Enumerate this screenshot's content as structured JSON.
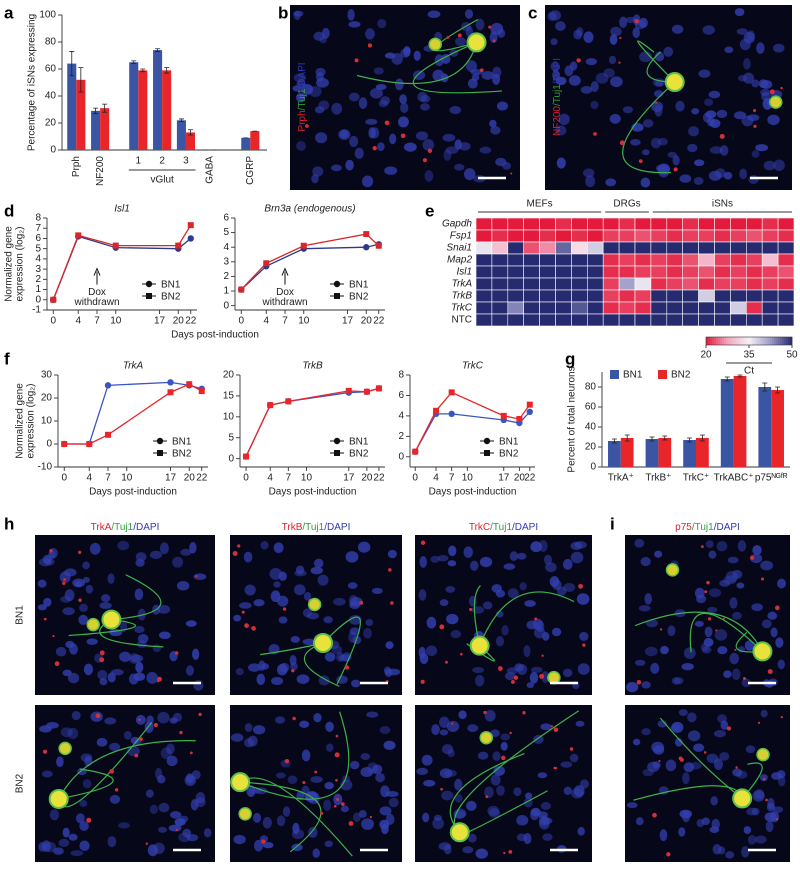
{
  "panel_labels": [
    "a",
    "b",
    "c",
    "d",
    "e",
    "f",
    "g",
    "h",
    "i"
  ],
  "stains": {
    "b": [
      "Prph",
      "/Tuj1",
      "/DAPI"
    ],
    "c": [
      "NF200",
      "/Tuj1",
      "/DAPI"
    ],
    "h1": [
      "TrkA",
      "/Tuj1",
      "/DAPI"
    ],
    "h2": [
      "TrkB",
      "/Tuj1",
      "/DAPI"
    ],
    "h3": [
      "TrkC",
      "/Tuj1",
      "/DAPI"
    ],
    "i": [
      "p75",
      "/Tuj1",
      "/DAPI"
    ]
  },
  "row_labels": [
    "BN1",
    "BN2"
  ],
  "chart_data": [
    {
      "type": "bar",
      "ylabel": "Percentage of iSNs expressing",
      "categories": [
        "Prph",
        "NF200",
        "1",
        "2",
        "3",
        "GABA",
        "CGRP"
      ],
      "group_label": "vGlut",
      "series": [
        {
          "color": "#3a55a4",
          "values": [
            64,
            29,
            65,
            74,
            22,
            0,
            9
          ],
          "errors": [
            9,
            2,
            1,
            1,
            1,
            0,
            0
          ]
        },
        {
          "color": "#e8262a",
          "values": [
            52,
            31,
            59,
            59,
            13,
            0,
            14
          ],
          "errors": [
            9,
            3,
            1,
            2,
            2,
            0,
            0
          ]
        }
      ],
      "ylim": [
        0,
        100
      ],
      "yticks": [
        0,
        20,
        40,
        60,
        80,
        100
      ]
    },
    {
      "type": "line",
      "title": "Isl1",
      "ylabel": [
        "Normalized gene",
        "expression (log₂)"
      ],
      "xlabel": "Days post-induction",
      "x": [
        0,
        4,
        10,
        20,
        22
      ],
      "xlim": [
        -1,
        23
      ],
      "xticks": [
        0,
        4,
        7,
        10,
        17,
        20,
        22
      ],
      "ylim": [
        -1,
        8
      ],
      "yticks": [
        -1,
        0,
        1,
        2,
        3,
        4,
        5,
        6,
        7,
        8
      ],
      "annotation": {
        "text": [
          "Dox",
          "withdrawn"
        ],
        "x": 7
      },
      "legend": "lower right",
      "series": [
        {
          "name": "BN1",
          "color": "#2b3a8c",
          "marker": "circle",
          "values": [
            0,
            6.2,
            5.1,
            5.0,
            6.0
          ]
        },
        {
          "name": "BN2",
          "color": "#d8262a",
          "marker": "square",
          "values": [
            0,
            6.3,
            5.3,
            5.3,
            7.3
          ]
        }
      ]
    },
    {
      "type": "line",
      "title": "Brn3a (endogenous)",
      "x": [
        0,
        4,
        10,
        20,
        22
      ],
      "xlim": [
        -1,
        23
      ],
      "xticks": [
        0,
        4,
        7,
        10,
        17,
        20,
        22
      ],
      "ylim": [
        -0.3,
        6
      ],
      "yticks": [
        0,
        1,
        2,
        3,
        4,
        5,
        6
      ],
      "annotation": {
        "text": [
          "Dox",
          "withdrawn"
        ],
        "x": 7
      },
      "legend": "lower right",
      "series": [
        {
          "name": "BN1",
          "color": "#2b3a8c",
          "marker": "circle",
          "values": [
            1.1,
            2.7,
            3.9,
            4.0,
            4.2
          ]
        },
        {
          "name": "BN2",
          "color": "#d8262a",
          "marker": "square",
          "values": [
            1.1,
            2.9,
            4.1,
            4.9,
            4.1
          ]
        }
      ]
    },
    {
      "type": "line",
      "title": "TrkA",
      "ylabel": [
        "Normalized gene",
        "expression (log₂)"
      ],
      "xlabel": "Days post-induction",
      "x": [
        0,
        4,
        7,
        17,
        20,
        22
      ],
      "xlim": [
        -1,
        23
      ],
      "xticks": [
        0,
        4,
        7,
        10,
        17,
        20,
        22
      ],
      "ylim": [
        -10,
        30
      ],
      "yticks": [
        -10,
        0,
        10,
        20,
        30
      ],
      "legend": "lower right",
      "series": [
        {
          "name": "BN1",
          "color": "#3a55c4",
          "marker": "circle",
          "values": [
            0,
            0,
            25.5,
            26.8,
            25.5,
            24
          ]
        },
        {
          "name": "BN2",
          "color": "#e8262a",
          "marker": "square",
          "values": [
            0,
            0,
            4,
            22.5,
            26,
            23
          ]
        }
      ]
    },
    {
      "type": "line",
      "title": "TrkB",
      "xlabel": "Days post-induction",
      "x": [
        0,
        4,
        7,
        17,
        20,
        22
      ],
      "xlim": [
        -1,
        23
      ],
      "xticks": [
        0,
        4,
        7,
        10,
        17,
        20,
        22
      ],
      "ylim": [
        -2,
        20
      ],
      "yticks": [
        0,
        5,
        10,
        15,
        20
      ],
      "legend": "lower right",
      "series": [
        {
          "name": "BN1",
          "color": "#3a55c4",
          "marker": "circle",
          "values": [
            0.5,
            12.8,
            13.7,
            15.8,
            16,
            16.8
          ]
        },
        {
          "name": "BN2",
          "color": "#e8262a",
          "marker": "square",
          "values": [
            0.5,
            12.8,
            13.7,
            16.2,
            16,
            16.8
          ]
        }
      ]
    },
    {
      "type": "line",
      "title": "TrkC",
      "xlabel": "Days post-induction",
      "x": [
        0,
        4,
        7,
        17,
        20,
        22
      ],
      "xlim": [
        -1,
        23
      ],
      "xticks": [
        0,
        4,
        7,
        10,
        17,
        20,
        22
      ],
      "ylim": [
        -1,
        8
      ],
      "yticks": [
        0,
        2,
        4,
        6,
        8
      ],
      "legend": "lower right",
      "series": [
        {
          "name": "BN1",
          "color": "#3a55c4",
          "marker": "circle",
          "values": [
            0.5,
            4.2,
            4.2,
            3.6,
            3.3,
            4.4
          ]
        },
        {
          "name": "BN2",
          "color": "#e8262a",
          "marker": "square",
          "values": [
            0.5,
            4.5,
            6.3,
            4.0,
            3.7,
            5.1
          ]
        }
      ]
    },
    {
      "type": "bar",
      "ylabel": "Percent of total neurons",
      "categories": [
        "TrkA⁺",
        "TrkB⁺",
        "TrkC⁺",
        "TrkABC⁺",
        "p75ᴺᴳᶠᴿ"
      ],
      "legend": "upper left",
      "series": [
        {
          "name": "BN1",
          "color": "#3a55a4",
          "values": [
            26,
            28,
            27,
            88,
            80
          ],
          "errors": [
            2,
            2,
            2,
            2,
            4
          ]
        },
        {
          "name": "BN2",
          "color": "#e8262a",
          "values": [
            29,
            29,
            29,
            91,
            77
          ],
          "errors": [
            3,
            2,
            3,
            1,
            3
          ]
        }
      ],
      "ylim": [
        0,
        95
      ],
      "yticks": [
        0,
        20,
        40,
        60,
        80
      ]
    },
    {
      "type": "heatmap",
      "rows": [
        "Gapdh",
        "Fsp1",
        "Snai1",
        "Map2",
        "Isl1",
        "TrkA",
        "TrkB",
        "TrkC",
        "NTC"
      ],
      "columns": [
        "MEFs",
        "MEFs",
        "MEFs",
        "MEFs",
        "MEFs",
        "MEFs",
        "MEFs",
        "MEFs",
        "DRGs",
        "DRGs",
        "DRGs",
        "iSNs",
        "iSNs",
        "iSNs",
        "iSNs",
        "iSNs",
        "iSNs",
        "iSNs",
        "iSNs",
        "iSNs"
      ],
      "values": [
        [
          20,
          20,
          19,
          20,
          20,
          21,
          20,
          20,
          20,
          21,
          20,
          20,
          20,
          21,
          20,
          20,
          20,
          20,
          21,
          20
        ],
        [
          20,
          21,
          20,
          20,
          21,
          20,
          21,
          20,
          22,
          22,
          23,
          22,
          21,
          22,
          22,
          21,
          22,
          23,
          22,
          21
        ],
        [
          36,
          30,
          50,
          23,
          26,
          46,
          33,
          38,
          50,
          50,
          50,
          50,
          50,
          50,
          50,
          50,
          50,
          50,
          50,
          50
        ],
        [
          50,
          50,
          50,
          50,
          50,
          50,
          50,
          50,
          21,
          22,
          21,
          22,
          21,
          23,
          29,
          22,
          21,
          22,
          30,
          21
        ],
        [
          50,
          50,
          50,
          50,
          50,
          50,
          50,
          50,
          21,
          21,
          22,
          22,
          21,
          22,
          23,
          21,
          22,
          21,
          22,
          23
        ],
        [
          50,
          50,
          50,
          50,
          50,
          50,
          50,
          50,
          22,
          42,
          36,
          21,
          22,
          23,
          21,
          22,
          22,
          21,
          22,
          21
        ],
        [
          50,
          50,
          50,
          50,
          50,
          50,
          50,
          50,
          22,
          21,
          22,
          50,
          50,
          50,
          38,
          50,
          50,
          50,
          50,
          50
        ],
        [
          50,
          50,
          44,
          50,
          50,
          50,
          47,
          50,
          21,
          22,
          21,
          50,
          50,
          50,
          50,
          50,
          38,
          21,
          50,
          50
        ],
        [
          50,
          50,
          50,
          50,
          50,
          50,
          50,
          50,
          50,
          50,
          50,
          50,
          50,
          50,
          50,
          50,
          50,
          50,
          50,
          50
        ]
      ],
      "clim": [
        20,
        50
      ],
      "cticks": [
        20,
        35,
        50
      ],
      "colorbar_label": "Ct",
      "colormap": [
        "#e31a3c",
        "#f4a6be",
        "#f5f0f5",
        "#9c9cc8",
        "#262a6e"
      ]
    }
  ]
}
